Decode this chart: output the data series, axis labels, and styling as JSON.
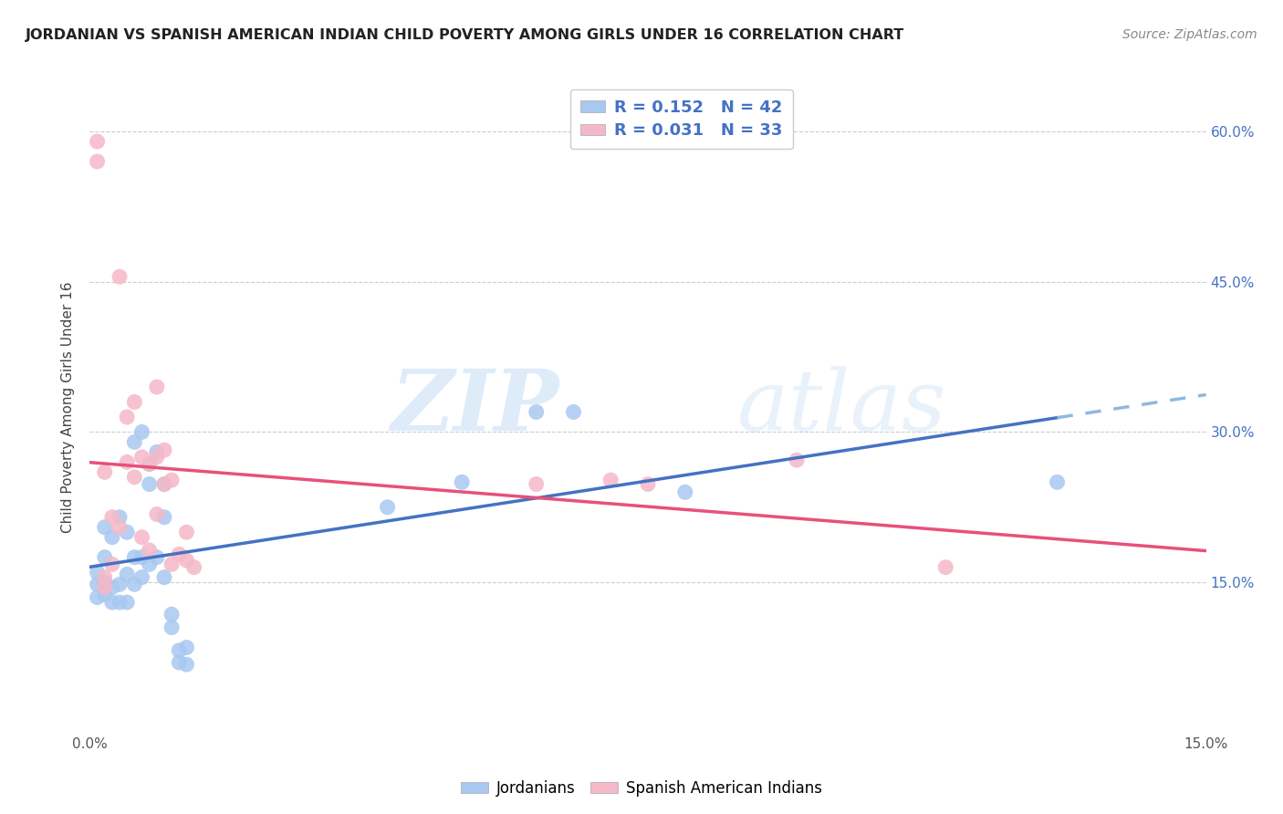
{
  "title": "JORDANIAN VS SPANISH AMERICAN INDIAN CHILD POVERTY AMONG GIRLS UNDER 16 CORRELATION CHART",
  "source": "Source: ZipAtlas.com",
  "ylabel": "Child Poverty Among Girls Under 16",
  "xlim": [
    0.0,
    0.15
  ],
  "ylim": [
    0.0,
    0.65
  ],
  "jordanians_R": 0.152,
  "jordanians_N": 42,
  "spanish_ai_R": 0.031,
  "spanish_ai_N": 33,
  "blue_color": "#a8c8f0",
  "pink_color": "#f5b8c8",
  "blue_line_color": "#4472c4",
  "pink_line_color": "#e8507a",
  "blue_dashed_color": "#90b8e0",
  "jordanians_x": [
    0.001,
    0.001,
    0.001,
    0.002,
    0.002,
    0.002,
    0.002,
    0.003,
    0.003,
    0.003,
    0.004,
    0.004,
    0.004,
    0.005,
    0.005,
    0.005,
    0.006,
    0.006,
    0.006,
    0.007,
    0.007,
    0.007,
    0.008,
    0.008,
    0.008,
    0.009,
    0.009,
    0.01,
    0.01,
    0.01,
    0.011,
    0.011,
    0.012,
    0.012,
    0.013,
    0.013,
    0.04,
    0.05,
    0.06,
    0.065,
    0.08,
    0.13
  ],
  "jordanians_y": [
    0.135,
    0.148,
    0.16,
    0.138,
    0.15,
    0.175,
    0.205,
    0.13,
    0.145,
    0.195,
    0.13,
    0.148,
    0.215,
    0.13,
    0.158,
    0.2,
    0.148,
    0.175,
    0.29,
    0.155,
    0.175,
    0.3,
    0.168,
    0.248,
    0.268,
    0.175,
    0.28,
    0.155,
    0.215,
    0.248,
    0.105,
    0.118,
    0.07,
    0.082,
    0.068,
    0.085,
    0.225,
    0.25,
    0.32,
    0.32,
    0.24,
    0.25
  ],
  "spanish_ai_x": [
    0.001,
    0.001,
    0.002,
    0.002,
    0.002,
    0.003,
    0.003,
    0.004,
    0.004,
    0.005,
    0.005,
    0.006,
    0.006,
    0.007,
    0.007,
    0.008,
    0.008,
    0.009,
    0.009,
    0.009,
    0.01,
    0.01,
    0.011,
    0.011,
    0.012,
    0.013,
    0.013,
    0.014,
    0.06,
    0.07,
    0.075,
    0.095,
    0.115
  ],
  "spanish_ai_y": [
    0.59,
    0.57,
    0.145,
    0.155,
    0.26,
    0.168,
    0.215,
    0.205,
    0.455,
    0.27,
    0.315,
    0.255,
    0.33,
    0.195,
    0.275,
    0.182,
    0.268,
    0.218,
    0.275,
    0.345,
    0.248,
    0.282,
    0.168,
    0.252,
    0.178,
    0.172,
    0.2,
    0.165,
    0.248,
    0.252,
    0.248,
    0.272,
    0.165
  ],
  "watermark_zip": "ZIP",
  "watermark_atlas": "atlas",
  "background_color": "#ffffff",
  "grid_color": "#cccccc"
}
